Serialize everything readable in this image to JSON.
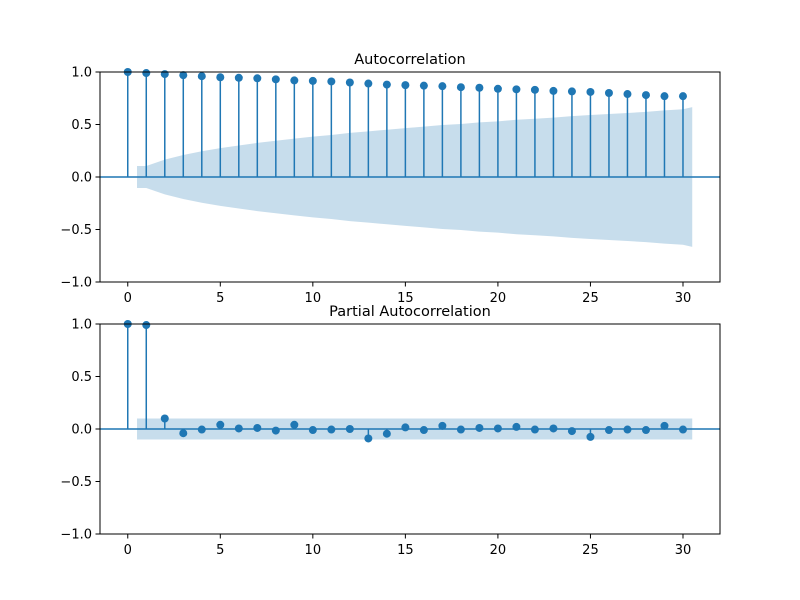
{
  "colors": {
    "stem": "#1f77b4",
    "marker": "#1f77b4",
    "band": "#1f77b4",
    "band_opacity": 0.25,
    "axis": "#000000"
  },
  "chart_data": [
    {
      "type": "stem",
      "title": "Autocorrelation",
      "xlabel": "",
      "ylabel": "",
      "xlim": [
        -1.5,
        32.0
      ],
      "ylim": [
        -1.0,
        1.0
      ],
      "xticks": [
        0,
        5,
        10,
        15,
        20,
        25,
        30
      ],
      "xtick_labels": [
        "0",
        "5",
        "10",
        "15",
        "20",
        "25",
        "30"
      ],
      "yticks": [
        -1.0,
        -0.5,
        0.0,
        0.5,
        1.0
      ],
      "ytick_labels": [
        "−1.0",
        "−0.5",
        "0.0",
        "0.5",
        "1.0"
      ],
      "lags": [
        0,
        1,
        2,
        3,
        4,
        5,
        6,
        7,
        8,
        9,
        10,
        11,
        12,
        13,
        14,
        15,
        16,
        17,
        18,
        19,
        20,
        21,
        22,
        23,
        24,
        25,
        26,
        27,
        28,
        29,
        30
      ],
      "values": [
        1.0,
        0.99,
        0.98,
        0.97,
        0.96,
        0.95,
        0.945,
        0.94,
        0.93,
        0.92,
        0.915,
        0.91,
        0.9,
        0.89,
        0.88,
        0.875,
        0.87,
        0.865,
        0.855,
        0.85,
        0.84,
        0.835,
        0.83,
        0.82,
        0.815,
        0.81,
        0.8,
        0.79,
        0.78,
        0.77,
        0.77
      ],
      "confidence_band": {
        "x": [
          0.5,
          1,
          2,
          3,
          4,
          5,
          6,
          7,
          8,
          9,
          10,
          11,
          12,
          13,
          14,
          15,
          16,
          17,
          18,
          19,
          20,
          21,
          22,
          23,
          24,
          25,
          26,
          27,
          28,
          29,
          30,
          30.5
        ],
        "upper": [
          0.105,
          0.105,
          0.165,
          0.21,
          0.245,
          0.275,
          0.3,
          0.325,
          0.345,
          0.365,
          0.385,
          0.4,
          0.42,
          0.435,
          0.45,
          0.465,
          0.48,
          0.495,
          0.505,
          0.52,
          0.53,
          0.545,
          0.555,
          0.565,
          0.58,
          0.59,
          0.6,
          0.61,
          0.62,
          0.635,
          0.645,
          0.665
        ]
      },
      "grid": false,
      "zero_line": true
    },
    {
      "type": "stem",
      "title": "Partial Autocorrelation",
      "xlabel": "",
      "ylabel": "",
      "xlim": [
        -1.5,
        32.0
      ],
      "ylim": [
        -1.0,
        1.0
      ],
      "xticks": [
        0,
        5,
        10,
        15,
        20,
        25,
        30
      ],
      "xtick_labels": [
        "0",
        "5",
        "10",
        "15",
        "20",
        "25",
        "30"
      ],
      "yticks": [
        -1.0,
        -0.5,
        0.0,
        0.5,
        1.0
      ],
      "ytick_labels": [
        "−1.0",
        "−0.5",
        "0.0",
        "0.5",
        "1.0"
      ],
      "lags": [
        0,
        1,
        2,
        3,
        4,
        5,
        6,
        7,
        8,
        9,
        10,
        11,
        12,
        13,
        14,
        15,
        16,
        17,
        18,
        19,
        20,
        21,
        22,
        23,
        24,
        25,
        26,
        27,
        28,
        29,
        30
      ],
      "values": [
        1.0,
        0.99,
        0.1,
        -0.04,
        -0.005,
        0.04,
        0.005,
        0.01,
        -0.015,
        0.04,
        -0.01,
        -0.005,
        0.0,
        -0.09,
        -0.045,
        0.015,
        -0.01,
        0.03,
        -0.005,
        0.01,
        0.005,
        0.02,
        -0.005,
        0.005,
        -0.02,
        -0.075,
        -0.01,
        -0.005,
        -0.01,
        0.03,
        -0.005
      ],
      "confidence_band": {
        "x": [
          0.5,
          30.5
        ],
        "upper": [
          0.1,
          0.1
        ]
      },
      "grid": false,
      "zero_line": true
    }
  ]
}
